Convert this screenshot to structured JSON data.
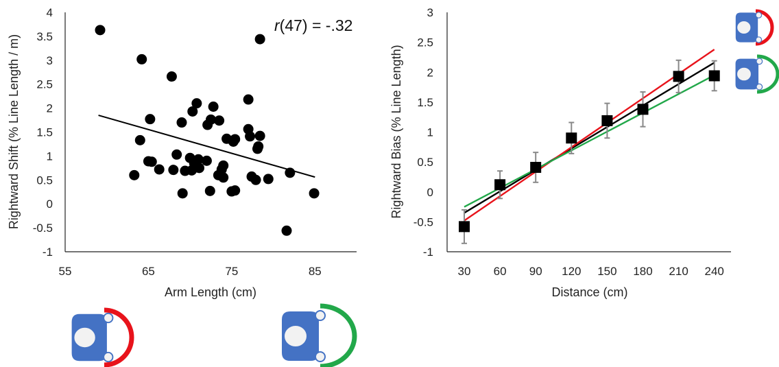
{
  "chart_data": [
    {
      "type": "scatter",
      "xlabel": "Arm Length (cm)",
      "ylabel": "Rightward Shift (% Line Length / m)",
      "annotation_r": "r",
      "annotation_rest": "(47) = -.32",
      "xlim": [
        55,
        90
      ],
      "ylim": [
        -1,
        4
      ],
      "x_ticks": [
        "55",
        "65",
        "75",
        "85"
      ],
      "x_tick_values": [
        55,
        65,
        75,
        85
      ],
      "y_ticks": [
        "4",
        "3.5",
        "3",
        "2.5",
        "2",
        "1.5",
        "1",
        "0.5",
        "0",
        "-0.5",
        "-1"
      ],
      "y_tick_values": [
        4,
        3.5,
        3,
        2.5,
        2,
        1.5,
        1,
        0.5,
        0,
        -0.5,
        -1
      ],
      "trendline": [
        [
          59,
          1.85
        ],
        [
          85,
          0.56
        ]
      ],
      "points": [
        [
          59.2,
          3.63
        ],
        [
          64.2,
          3.02
        ],
        [
          78.4,
          3.44
        ],
        [
          67.8,
          2.66
        ],
        [
          70.8,
          2.1
        ],
        [
          72.8,
          2.03
        ],
        [
          70.3,
          1.93
        ],
        [
          77.0,
          2.18
        ],
        [
          65.2,
          1.77
        ],
        [
          69.0,
          1.7
        ],
        [
          72.1,
          1.65
        ],
        [
          72.5,
          1.76
        ],
        [
          73.5,
          1.74
        ],
        [
          77.0,
          1.56
        ],
        [
          77.2,
          1.41
        ],
        [
          78.4,
          1.42
        ],
        [
          74.4,
          1.36
        ],
        [
          75.2,
          1.3
        ],
        [
          75.4,
          1.35
        ],
        [
          78.1,
          1.15
        ],
        [
          78.2,
          1.2
        ],
        [
          64.0,
          1.33
        ],
        [
          68.4,
          1.03
        ],
        [
          70.0,
          0.96
        ],
        [
          71.0,
          0.93
        ],
        [
          72.0,
          0.9
        ],
        [
          70.5,
          0.85
        ],
        [
          70.8,
          0.8
        ],
        [
          71.1,
          0.75
        ],
        [
          74.0,
          0.8
        ],
        [
          73.8,
          0.72
        ],
        [
          65.0,
          0.89
        ],
        [
          65.4,
          0.88
        ],
        [
          66.3,
          0.72
        ],
        [
          68.0,
          0.71
        ],
        [
          69.4,
          0.69
        ],
        [
          70.2,
          0.7
        ],
        [
          73.4,
          0.6
        ],
        [
          74.0,
          0.55
        ],
        [
          77.4,
          0.57
        ],
        [
          77.9,
          0.5
        ],
        [
          79.4,
          0.52
        ],
        [
          82.0,
          0.65
        ],
        [
          63.3,
          0.6
        ],
        [
          69.1,
          0.22
        ],
        [
          72.4,
          0.27
        ],
        [
          75.0,
          0.26
        ],
        [
          75.4,
          0.28
        ],
        [
          84.9,
          0.22
        ],
        [
          81.6,
          -0.56
        ]
      ]
    },
    {
      "type": "line",
      "xlabel": "Distance (cm)",
      "ylabel": "Rightward Bias (% Line Length)",
      "categories": [
        "30",
        "60",
        "90",
        "120",
        "150",
        "180",
        "210",
        "240"
      ],
      "ylim": [
        -1,
        3
      ],
      "y_ticks": [
        "3",
        "2.5",
        "2",
        "1.5",
        "1",
        "0.5",
        "0",
        "-0.5",
        "-1"
      ],
      "y_tick_values": [
        3,
        2.5,
        2,
        1.5,
        1,
        0.5,
        0,
        -0.5,
        -1
      ],
      "series": [
        {
          "values": [
            -0.58,
            0.12,
            0.41,
            0.9,
            1.19,
            1.38,
            1.93,
            1.94
          ],
          "error": [
            0.28,
            0.23,
            0.25,
            0.26,
            0.29,
            0.29,
            0.27,
            0.25
          ]
        }
      ],
      "trendlines": [
        {
          "color": "#000000",
          "start": [
            30,
            -0.35
          ],
          "end": [
            240,
            2.16
          ]
        },
        {
          "color": "#e8131b",
          "start": [
            30,
            -0.48
          ],
          "end": [
            240,
            2.38
          ]
        },
        {
          "color": "#22a84a",
          "start": [
            30,
            -0.25
          ],
          "end": [
            240,
            1.95
          ]
        }
      ]
    }
  ],
  "icons": {
    "arm_body_color": "#4472c4",
    "head_color": "#f2f2f2",
    "short_reach_color": "#e8131b",
    "long_reach_color": "#22a84a"
  }
}
